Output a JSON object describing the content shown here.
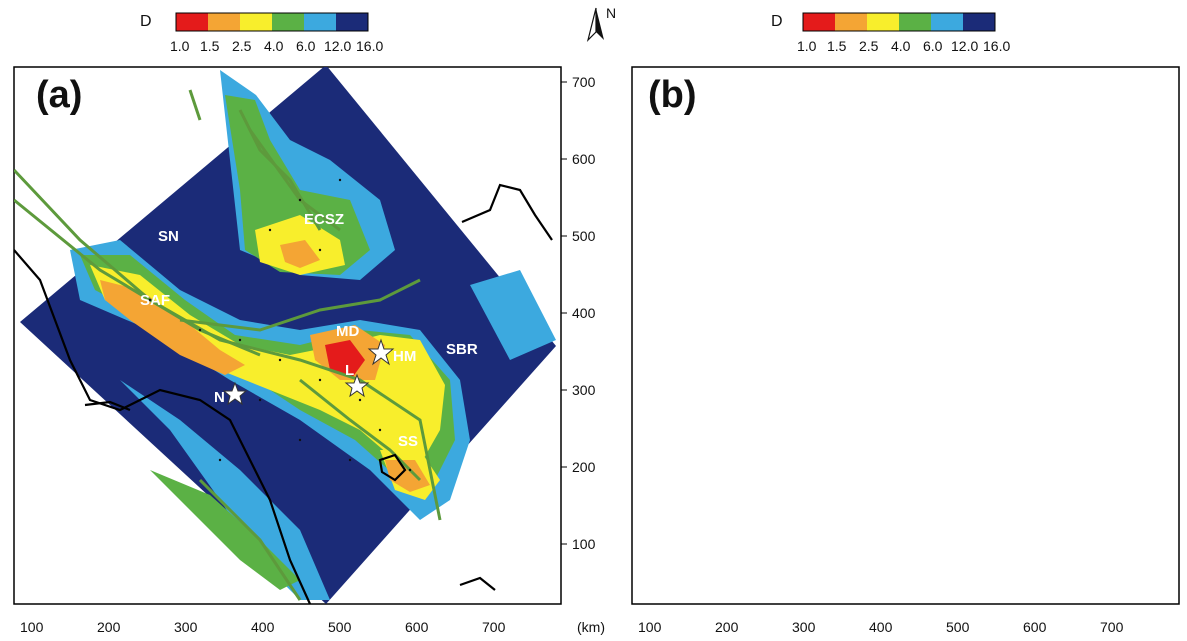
{
  "colors": {
    "red": "#e41b1b",
    "orange": "#f4a534",
    "yellow": "#f8ee2c",
    "green": "#5bb145",
    "lightblue": "#3ca9df",
    "darkblue": "#1b2b78",
    "fault": "#5d9a3c",
    "coast": "#000000"
  },
  "colorbar": {
    "title": "D",
    "ticks": [
      "1.0",
      "1.5",
      "2.5",
      "4.0",
      "6.0",
      "12.0",
      "16.0"
    ]
  },
  "north_arrow": {
    "label": "N",
    "icon": "north-arrow-icon"
  },
  "unit_label": "(km)",
  "x_ticks": [
    "100",
    "200",
    "300",
    "400",
    "500",
    "600",
    "700"
  ],
  "y_ticks": [
    "100",
    "200",
    "300",
    "400",
    "500",
    "600",
    "700"
  ],
  "panels": [
    {
      "letter": "(a)",
      "region_labels": [
        "SN",
        "ECSZ",
        "SAF",
        "MD",
        "SBR",
        "HM",
        "L",
        "N",
        "SS"
      ]
    },
    {
      "letter": "(b)"
    }
  ]
}
